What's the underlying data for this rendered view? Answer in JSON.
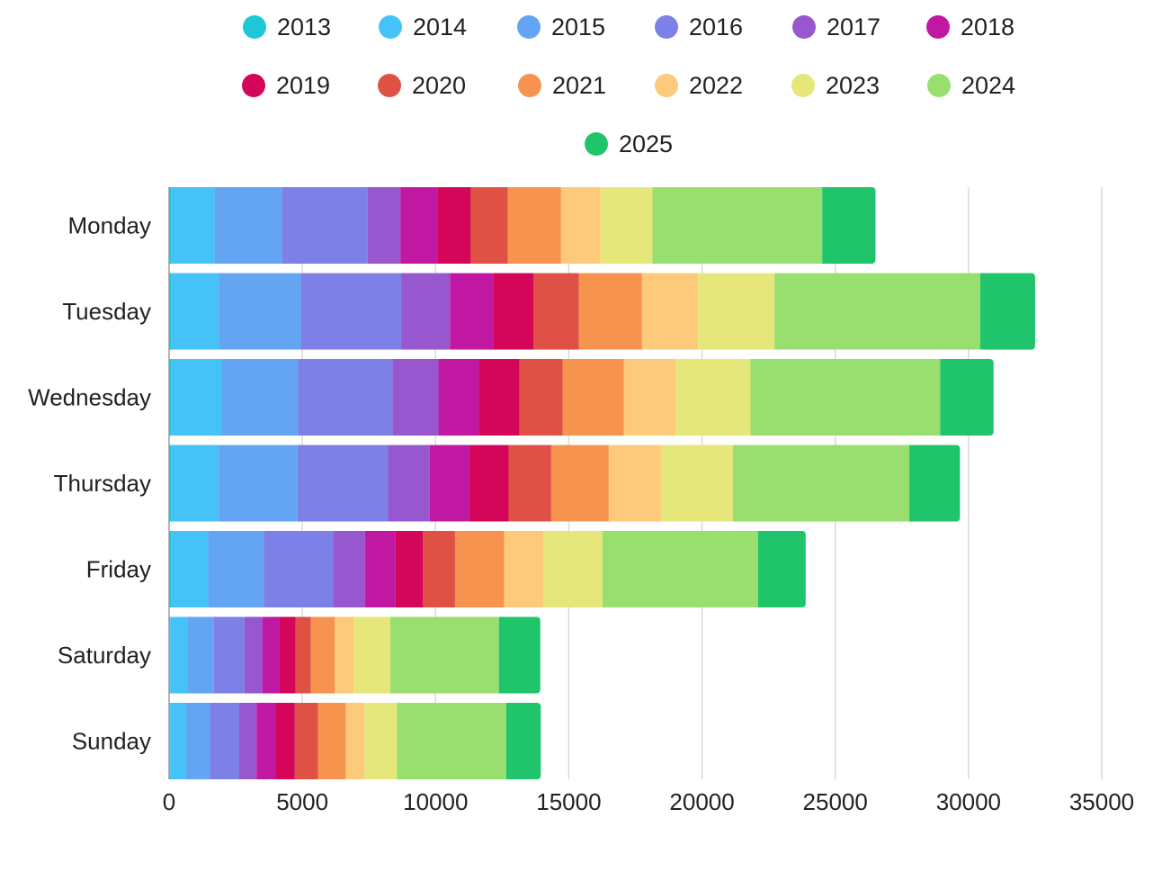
{
  "chart_data": {
    "type": "bar",
    "orientation": "horizontal",
    "stacked": true,
    "title": "",
    "xlabel": "",
    "ylabel": "",
    "xlim": [
      0,
      35000
    ],
    "xticks": [
      "0",
      "5000",
      "10000",
      "15000",
      "20000",
      "25000",
      "30000",
      "35000"
    ],
    "grid": true,
    "legend_position": "top",
    "categories": [
      "Monday",
      "Tuesday",
      "Wednesday",
      "Thursday",
      "Friday",
      "Saturday",
      "Sunday"
    ],
    "series": [
      {
        "name": "2013",
        "color": "#1ec8d8",
        "values": [
          70,
          70,
          70,
          70,
          70,
          40,
          40
        ]
      },
      {
        "name": "2014",
        "color": "#45c2f8",
        "values": [
          1630,
          1790,
          1890,
          1790,
          1400,
          670,
          600
        ]
      },
      {
        "name": "2015",
        "color": "#64a5f3",
        "values": [
          2530,
          3080,
          2880,
          2960,
          2080,
          970,
          890
        ]
      },
      {
        "name": "2016",
        "color": "#7d80e6",
        "values": [
          3220,
          3770,
          3550,
          3400,
          2600,
          1150,
          1100
        ]
      },
      {
        "name": "2017",
        "color": "#9657cf",
        "values": [
          1230,
          1830,
          1720,
          1560,
          1200,
          670,
          650
        ]
      },
      {
        "name": "2018",
        "color": "#c018a3",
        "values": [
          1390,
          1630,
          1520,
          1490,
          1150,
          650,
          720
        ]
      },
      {
        "name": "2019",
        "color": "#d4065a",
        "values": [
          1250,
          1510,
          1520,
          1470,
          1030,
          600,
          720
        ]
      },
      {
        "name": "2020",
        "color": "#df5045",
        "values": [
          1390,
          1700,
          1620,
          1600,
          1200,
          570,
          870
        ]
      },
      {
        "name": "2021",
        "color": "#f6934f",
        "values": [
          2000,
          2370,
          2300,
          2160,
          1840,
          900,
          1040
        ]
      },
      {
        "name": "2022",
        "color": "#fdc97a",
        "values": [
          1480,
          2100,
          1940,
          1960,
          1480,
          700,
          700
        ]
      },
      {
        "name": "2023",
        "color": "#e6e77b",
        "values": [
          1950,
          2870,
          2810,
          2700,
          2210,
          1380,
          1220
        ]
      },
      {
        "name": "2024",
        "color": "#98df6f",
        "values": [
          6370,
          7720,
          7120,
          6620,
          5840,
          4080,
          4100
        ]
      },
      {
        "name": "2025",
        "color": "#1fc46b",
        "values": [
          2000,
          2060,
          2000,
          1900,
          1790,
          1550,
          1300
        ]
      }
    ]
  }
}
